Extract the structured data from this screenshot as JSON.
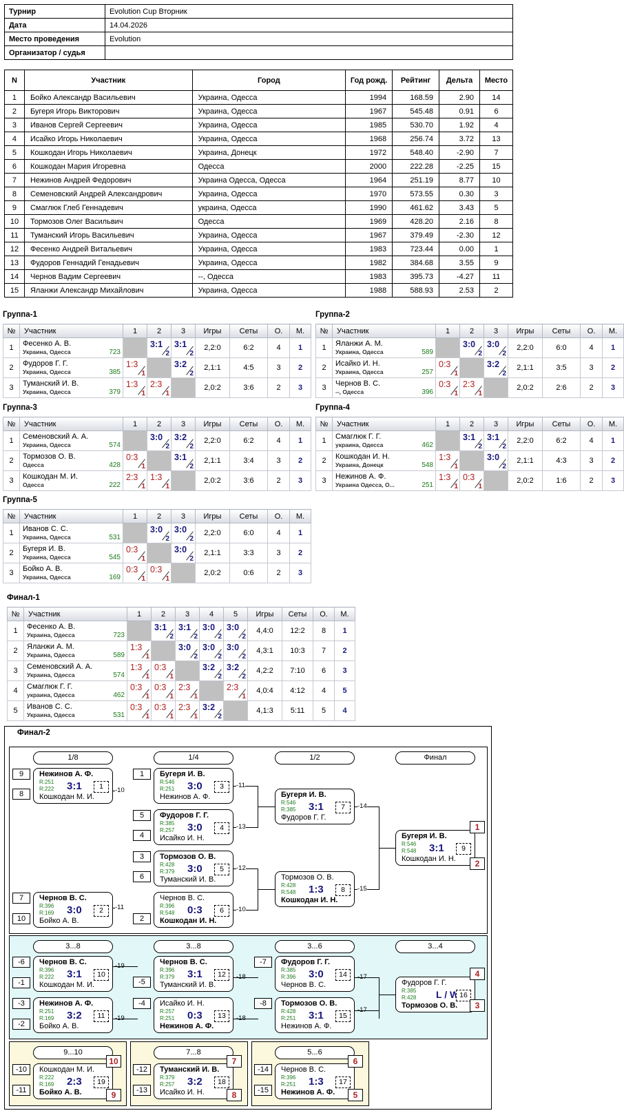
{
  "info": [
    {
      "key": "Турнир",
      "value": "Evolution Cup Вторник"
    },
    {
      "key": "Дата",
      "value": "14.04.2026"
    },
    {
      "key": "Место проведения",
      "value": "Evolution"
    },
    {
      "key": "Организатор / судья",
      "value": ""
    }
  ],
  "participants_headers": [
    "N",
    "Участник",
    "Город",
    "Год рожд.",
    "Рейтинг",
    "Дельта",
    "Место"
  ],
  "participants": [
    [
      "1",
      "Бойко Александр Васильевич",
      "Украина, Одесса",
      "1994",
      "168.59",
      "2.90",
      "14"
    ],
    [
      "2",
      "Бугеря Игорь Викторович",
      "Украина, Одесса",
      "1967",
      "545.48",
      "0.91",
      "6"
    ],
    [
      "3",
      "Иванов Сергей Сергеевич",
      "Украина, Одесса",
      "1985",
      "530.70",
      "1.92",
      "4"
    ],
    [
      "4",
      "Исайко Игорь Николаевич",
      "Украина, Одесса",
      "1968",
      "256.74",
      "3.72",
      "13"
    ],
    [
      "5",
      "Кошкодан Игорь Николаевич",
      "Украина, Донецк",
      "1972",
      "548.40",
      "-2.90",
      "7"
    ],
    [
      "6",
      "Кошкодан Мария Игоревна",
      "Одесса",
      "2000",
      "222.28",
      "-2.25",
      "15"
    ],
    [
      "7",
      "Нежинов Андрей Федорович",
      "Украина Одесса, Одесса",
      "1964",
      "251.19",
      "8.77",
      "10"
    ],
    [
      "8",
      "Семеновский Андрей Александрович",
      "Украина, Одесса",
      "1970",
      "573.55",
      "0.30",
      "3"
    ],
    [
      "9",
      "Смаглюк Глеб Геннадевич",
      "украина, Одесса",
      "1990",
      "461.62",
      "3.43",
      "5"
    ],
    [
      "10",
      "Тормозов Олег Васильвич",
      "Одесса",
      "1969",
      "428.20",
      "2.16",
      "8"
    ],
    [
      "11",
      "Туманский Игорь Васильевич",
      "Украина, Одесса",
      "1967",
      "379.49",
      "-2.30",
      "12"
    ],
    [
      "12",
      "Фесенко Андрей Витальевич",
      "Украина, Одесса",
      "1983",
      "723.44",
      "0.00",
      "1"
    ],
    [
      "13",
      "Фудоров Геннадий Генадьевич",
      "Украина, Одесса",
      "1982",
      "384.68",
      "3.55",
      "9"
    ],
    [
      "14",
      "Чернов Вадим Сергеевич",
      "--, Одесса",
      "1983",
      "395.73",
      "-4.27",
      "11"
    ],
    [
      "15",
      "Яланжи Александр Михайлович",
      "Украина, Одесса",
      "1988",
      "588.93",
      "2.53",
      "2"
    ]
  ],
  "group_headers": [
    "№",
    "Участник",
    "Игры",
    "Сеты",
    "О.",
    "М."
  ],
  "groups": [
    {
      "title": "Группа-1",
      "rows": [
        {
          "n": "1",
          "name": "Фесенко А. В.",
          "city": "Украина, Одесса",
          "rating": "723",
          "res": [
            "",
            "3:1|2|w",
            "3:1|2|w"
          ],
          "games": "2,2:0",
          "sets": "6:2",
          "pts": "4",
          "place": "1"
        },
        {
          "n": "2",
          "name": "Фудоров Г. Г.",
          "city": "Украина, Одесса",
          "rating": "385",
          "res": [
            "1:3|1|l",
            "",
            "3:2|2|w"
          ],
          "games": "2,1:1",
          "sets": "4:5",
          "pts": "3",
          "place": "2"
        },
        {
          "n": "3",
          "name": "Туманский И. В.",
          "city": "Украина, Одесса",
          "rating": "379",
          "res": [
            "1:3|1|l",
            "2:3|1|l",
            ""
          ],
          "games": "2,0:2",
          "sets": "3:6",
          "pts": "2",
          "place": "3"
        }
      ]
    },
    {
      "title": "Группа-2",
      "rows": [
        {
          "n": "1",
          "name": "Яланжи А. М.",
          "city": "Украина, Одесса",
          "rating": "589",
          "res": [
            "",
            "3:0|2|w",
            "3:0|2|w"
          ],
          "games": "2,2:0",
          "sets": "6:0",
          "pts": "4",
          "place": "1"
        },
        {
          "n": "2",
          "name": "Исайко И. Н.",
          "city": "Украина, Одесса",
          "rating": "257",
          "res": [
            "0:3|1|l",
            "",
            "3:2|2|w"
          ],
          "games": "2,1:1",
          "sets": "3:5",
          "pts": "3",
          "place": "2"
        },
        {
          "n": "3",
          "name": "Чернов В. С.",
          "city": "--, Одесса",
          "rating": "396",
          "res": [
            "0:3|1|l",
            "2:3|1|l",
            ""
          ],
          "games": "2,0:2",
          "sets": "2:6",
          "pts": "2",
          "place": "3"
        }
      ]
    },
    {
      "title": "Группа-3",
      "rows": [
        {
          "n": "1",
          "name": "Семеновский А. А.",
          "city": "Украина, Одесса",
          "rating": "574",
          "res": [
            "",
            "3:0|2|w",
            "3:2|2|w"
          ],
          "games": "2,2:0",
          "sets": "6:2",
          "pts": "4",
          "place": "1"
        },
        {
          "n": "2",
          "name": "Тормозов О. В.",
          "city": "Одесса",
          "rating": "428",
          "res": [
            "0:3|1|l",
            "",
            "3:1|2|w"
          ],
          "games": "2,1:1",
          "sets": "3:4",
          "pts": "3",
          "place": "2"
        },
        {
          "n": "3",
          "name": "Кошкодан М. И.",
          "city": "Одесса",
          "rating": "222",
          "res": [
            "2:3|1|l",
            "1:3|1|l",
            ""
          ],
          "games": "2,0:2",
          "sets": "3:6",
          "pts": "2",
          "place": "3"
        }
      ]
    },
    {
      "title": "Группа-4",
      "rows": [
        {
          "n": "1",
          "name": "Смаглюк Г. Г.",
          "city": "украина, Одесса",
          "rating": "462",
          "res": [
            "",
            "3:1|2|w",
            "3:1|2|w"
          ],
          "games": "2,2:0",
          "sets": "6:2",
          "pts": "4",
          "place": "1"
        },
        {
          "n": "2",
          "name": "Кошкодан И. Н.",
          "city": "Украина, Донецк",
          "rating": "548",
          "res": [
            "1:3|1|l",
            "",
            "3:0|2|w"
          ],
          "games": "2,1:1",
          "sets": "4:3",
          "pts": "3",
          "place": "2"
        },
        {
          "n": "3",
          "name": "Нежинов А. Ф.",
          "city": "Украина Одесса, О...",
          "rating": "251",
          "res": [
            "1:3|1|l",
            "0:3|1|l",
            ""
          ],
          "games": "2,0:2",
          "sets": "1:6",
          "pts": "2",
          "place": "3"
        }
      ]
    },
    {
      "title": "Группа-5",
      "rows": [
        {
          "n": "1",
          "name": "Иванов С. С.",
          "city": "Украина, Одесса",
          "rating": "531",
          "res": [
            "",
            "3:0|2|w",
            "3:0|2|w"
          ],
          "games": "2,2:0",
          "sets": "6:0",
          "pts": "4",
          "place": "1"
        },
        {
          "n": "2",
          "name": "Бугеря И. В.",
          "city": "Украина, Одесса",
          "rating": "545",
          "res": [
            "0:3|1|l",
            "",
            "3:0|2|w"
          ],
          "games": "2,1:1",
          "sets": "3:3",
          "pts": "3",
          "place": "2"
        },
        {
          "n": "3",
          "name": "Бойко А. В.",
          "city": "Украина, Одесса",
          "rating": "169",
          "res": [
            "0:3|1|l",
            "0:3|1|l",
            ""
          ],
          "games": "2,0:2",
          "sets": "0:6",
          "pts": "2",
          "place": "3"
        }
      ]
    }
  ],
  "final1": {
    "title": "Финал-1",
    "rows": [
      {
        "n": "1",
        "name": "Фесенко А. В.",
        "city": "Украина, Одесса",
        "rating": "723",
        "res": [
          "",
          "3:1|2|w",
          "3:1|2|w",
          "3:0|2|w",
          "3:0|2|w"
        ],
        "games": "4,4:0",
        "sets": "12:2",
        "pts": "8",
        "place": "1"
      },
      {
        "n": "2",
        "name": "Яланжи А. М.",
        "city": "Украина, Одесса",
        "rating": "589",
        "res": [
          "1:3|1|l",
          "",
          "3:0|2|w",
          "3:0|2|w",
          "3:0|2|w"
        ],
        "games": "4,3:1",
        "sets": "10:3",
        "pts": "7",
        "place": "2"
      },
      {
        "n": "3",
        "name": "Семеновский А. А.",
        "city": "Украина, Одесса",
        "rating": "574",
        "res": [
          "1:3|1|l",
          "0:3|1|l",
          "",
          "3:2|2|w",
          "3:2|2|w"
        ],
        "games": "4,2:2",
        "sets": "7:10",
        "pts": "6",
        "place": "3"
      },
      {
        "n": "4",
        "name": "Смаглюк Г. Г.",
        "city": "украина, Одесса",
        "rating": "462",
        "res": [
          "0:3|1|l",
          "0:3|1|l",
          "2:3|1|l",
          "",
          "2:3|1|l"
        ],
        "games": "4,0:4",
        "sets": "4:12",
        "pts": "4",
        "place": "5"
      },
      {
        "n": "5",
        "name": "Иванов С. С.",
        "city": "Украина, Одесса",
        "rating": "531",
        "res": [
          "0:3|1|l",
          "0:3|1|l",
          "2:3|1|l",
          "3:2|2|w",
          ""
        ],
        "games": "4,1:3",
        "sets": "5:11",
        "pts": "5",
        "place": "4"
      }
    ]
  },
  "final2": {
    "title": "Финал-2",
    "rounds_main": [
      "1/8",
      "1/4",
      "1/2",
      "Финал"
    ],
    "rounds_cons": [
      "3...8",
      "3...8",
      "3...6",
      "3...4"
    ],
    "rounds_bottom": [
      "9...10",
      "7...8",
      "5...6"
    ],
    "matches": [
      {
        "id": "m1",
        "a": "Нежинов А. Ф.",
        "b": "Кошкодан М. И.",
        "ra": "R:251",
        "rb": "R:222",
        "score": "3:1",
        "no": "1",
        "win": "a"
      },
      {
        "id": "m10",
        "a": "Чернов В. С.",
        "b": "Бойко А. В.",
        "ra": "R:396",
        "rb": "R:169",
        "score": "3:0",
        "no": "2",
        "win": "a"
      },
      {
        "id": "m3",
        "a": "Бугеря И. В.",
        "b": "Нежинов А. Ф.",
        "ra": "R:546",
        "rb": "R:251",
        "score": "3:0",
        "no": "3",
        "win": "a"
      },
      {
        "id": "m4",
        "a": "Фудоров Г. Г.",
        "b": "Исайко И. Н.",
        "ra": "R:385",
        "rb": "R:257",
        "score": "3:0",
        "no": "4",
        "win": "a"
      },
      {
        "id": "m5",
        "a": "Тормозов О. В.",
        "b": "Туманский И. В.",
        "ra": "R:428",
        "rb": "R:379",
        "score": "3:0",
        "no": "5",
        "win": "a"
      },
      {
        "id": "m6",
        "a": "Чернов В. С.",
        "b": "Кошкодан И. Н.",
        "ra": "R:396",
        "rb": "R:548",
        "score": "0:3",
        "no": "6",
        "win": "b"
      },
      {
        "id": "m7",
        "a": "Бугеря И. В.",
        "b": "Фудоров Г. Г.",
        "ra": "R:546",
        "rb": "R:385",
        "score": "3:1",
        "no": "7",
        "win": "a"
      },
      {
        "id": "m8",
        "a": "Тормозов О. В.",
        "b": "Кошкодан И. Н.",
        "ra": "R:428",
        "rb": "R:548",
        "score": "1:3",
        "no": "8",
        "win": "b"
      },
      {
        "id": "m9",
        "a": "Бугеря И. В.",
        "b": "Кошкодан И. Н.",
        "ra": "R:546",
        "rb": "R:548",
        "score": "3:1",
        "no": "9",
        "win": "a"
      },
      {
        "id": "m10c",
        "a": "Чернов В. С.",
        "b": "Кошкодан М. И.",
        "ra": "R:396",
        "rb": "R:222",
        "score": "3:1",
        "no": "10",
        "win": "a"
      },
      {
        "id": "m11c",
        "a": "Нежинов А. Ф.",
        "b": "Бойко А. В.",
        "ra": "R:251",
        "rb": "R:169",
        "score": "3:2",
        "no": "11",
        "win": "a"
      },
      {
        "id": "m12c",
        "a": "Чернов В. С.",
        "b": "Туманский И. В.",
        "ra": "R:396",
        "rb": "R:379",
        "score": "3:1",
        "no": "12",
        "win": "a"
      },
      {
        "id": "m13c",
        "a": "Исайко И. Н.",
        "b": "Нежинов А. Ф.",
        "ra": "R:257",
        "rb": "R:251",
        "score": "0:3",
        "no": "13",
        "win": "b"
      },
      {
        "id": "m14c",
        "a": "Фудоров Г. Г.",
        "b": "Чернов В. С.",
        "ra": "R:385",
        "rb": "R:396",
        "score": "3:0",
        "no": "14",
        "win": "a"
      },
      {
        "id": "m15c",
        "a": "Тормозов О. В.",
        "b": "Нежинов А. Ф.",
        "ra": "R:428",
        "rb": "R:251",
        "score": "3:1",
        "no": "15",
        "win": "a"
      },
      {
        "id": "m16c",
        "a": "Фудоров Г. Г.",
        "b": "Тормозов О. В.",
        "ra": "R:385",
        "rb": "R:428",
        "score": "L / W",
        "no": "16",
        "win": "b"
      },
      {
        "id": "m19",
        "a": "Кошкодан М. И.",
        "b": "Бойко А. В.",
        "ra": "R:222",
        "rb": "R:169",
        "score": "2:3",
        "no": "19",
        "win": "b"
      },
      {
        "id": "m18",
        "a": "Туманский И. В.",
        "b": "Исайко И. Н.",
        "ra": "R:379",
        "rb": "R:257",
        "score": "3:2",
        "no": "18",
        "win": "a"
      },
      {
        "id": "m17",
        "a": "Чернов В. С.",
        "b": "Нежинов А. Ф.",
        "ra": "R:396",
        "rb": "R:251",
        "score": "1:3",
        "no": "17",
        "win": "b"
      }
    ]
  }
}
